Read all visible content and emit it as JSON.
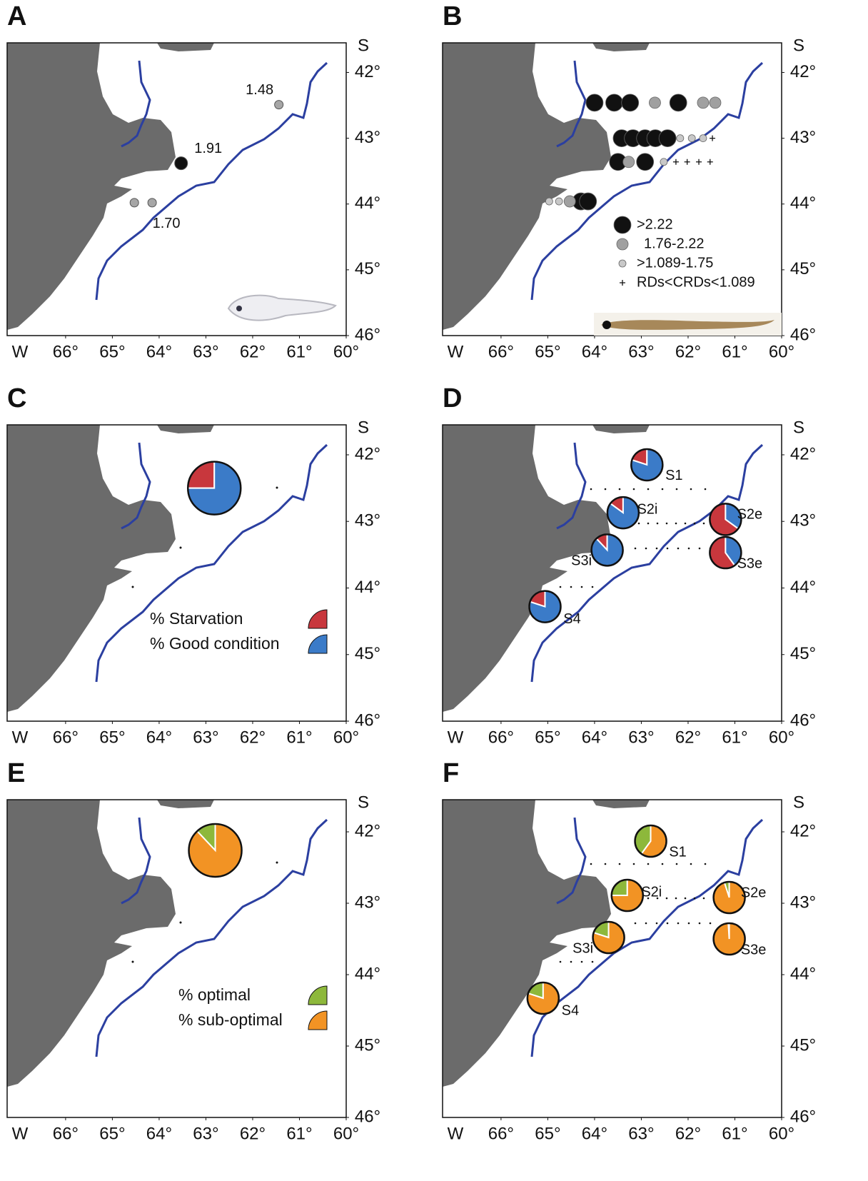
{
  "figure": {
    "axes": {
      "xlabel": "W",
      "ylabel": "S",
      "xlim": [
        67.25,
        60
      ],
      "ylim": [
        41.55,
        46
      ],
      "xticks": [
        {
          "value": 66,
          "label": "66°"
        },
        {
          "value": 65,
          "label": "65°"
        },
        {
          "value": 64,
          "label": "64°"
        },
        {
          "value": 63,
          "label": "63°"
        },
        {
          "value": 62,
          "label": "62°"
        },
        {
          "value": 61,
          "label": "61°"
        },
        {
          "value": 60,
          "label": "60°"
        }
      ],
      "yticks": [
        {
          "value": 42,
          "label": "42°"
        },
        {
          "value": 43,
          "label": "43°"
        },
        {
          "value": 44,
          "label": "44°"
        },
        {
          "value": 45,
          "label": "45°"
        },
        {
          "value": 46,
          "label": "46°"
        }
      ]
    },
    "panels": [
      {
        "letter": "A",
        "type": "points",
        "points": [
          {
            "lon": 61.44,
            "lat": 42.49,
            "color": "#a6a6a6",
            "label": "1.48"
          },
          {
            "lon": 63.53,
            "lat": 43.38,
            "color": "#111111",
            "label": "1.91"
          },
          {
            "lon": 64.15,
            "lat": 43.98,
            "color": "#a6a6a6",
            "label": "1.70"
          },
          {
            "lon": 64.53,
            "lat": 43.98,
            "color": "#a6a6a6"
          }
        ]
      },
      {
        "letter": "B",
        "type": "classes",
        "classes": [
          {
            "label": ">2.22",
            "color": "#111111",
            "marker": "circle",
            "points": [
              [
                64.0,
                42.46
              ],
              [
                63.58,
                42.46
              ],
              [
                63.24,
                42.46
              ],
              [
                62.21,
                42.46
              ],
              [
                63.42,
                43.0
              ],
              [
                63.18,
                43.0
              ],
              [
                62.92,
                43.0
              ],
              [
                62.7,
                43.0
              ],
              [
                62.44,
                43.0
              ],
              [
                63.5,
                43.36
              ],
              [
                62.92,
                43.36
              ],
              [
                64.29,
                43.96
              ],
              [
                64.14,
                43.96
              ]
            ]
          },
          {
            "label": "1.76-2.22",
            "color": "#a0a0a0",
            "marker": "circle",
            "points": [
              [
                62.71,
                42.46
              ],
              [
                61.68,
                42.46
              ],
              [
                61.42,
                42.46
              ],
              [
                63.27,
                43.36
              ],
              [
                64.53,
                43.96
              ]
            ]
          },
          {
            "label": ">1.089-1.75",
            "color": "#c8c8c8",
            "marker": "circle",
            "points": [
              [
                62.17,
                43.0
              ],
              [
                61.92,
                43.0
              ],
              [
                61.68,
                43.0
              ],
              [
                62.52,
                43.36
              ],
              [
                64.97,
                43.96
              ],
              [
                64.76,
                43.96
              ]
            ]
          },
          {
            "label": "RDs<CRDs<1.089",
            "color": "#111111",
            "marker": "plus",
            "points": [
              [
                61.48,
                43.0
              ],
              [
                62.26,
                43.36
              ],
              [
                62.02,
                43.36
              ],
              [
                61.77,
                43.36
              ],
              [
                61.53,
                43.36
              ]
            ]
          }
        ]
      },
      {
        "letter": "C",
        "type": "pies",
        "series": [
          {
            "name": "% Starvation",
            "color": "#c8373d"
          },
          {
            "name": "% Good condition",
            "color": "#3b7bc8"
          }
        ],
        "pies": [
          {
            "lon": 62.82,
            "lat": 42.5,
            "values": [
              25,
              75
            ]
          }
        ]
      },
      {
        "letter": "D",
        "type": "pies",
        "series": [
          {
            "color": "#c8373d"
          },
          {
            "color": "#3b7bc8"
          }
        ],
        "pies": [
          {
            "label": "S1",
            "lon": 62.88,
            "lat": 42.15,
            "values": [
              20,
              80
            ]
          },
          {
            "label": "S2i",
            "lon": 63.39,
            "lat": 42.87,
            "values": [
              15,
              85
            ]
          },
          {
            "label": "S2e",
            "lon": 61.2,
            "lat": 42.97,
            "values": [
              65,
              35
            ]
          },
          {
            "label": "S3i",
            "lon": 63.73,
            "lat": 43.43,
            "values": [
              12,
              88
            ]
          },
          {
            "label": "S3e",
            "lon": 61.2,
            "lat": 43.47,
            "values": [
              60,
              40
            ]
          },
          {
            "label": "S4",
            "lon": 65.06,
            "lat": 44.28,
            "values": [
              20,
              80
            ]
          }
        ]
      },
      {
        "letter": "E",
        "type": "pies",
        "series": [
          {
            "name": "% optimal",
            "color": "#8db83b"
          },
          {
            "name": "% sub-optimal",
            "color": "#f29324"
          }
        ],
        "pies": [
          {
            "lon": 62.8,
            "lat": 42.26,
            "values": [
              12,
              88
            ]
          }
        ]
      },
      {
        "letter": "F",
        "type": "pies",
        "series": [
          {
            "color": "#8db83b"
          },
          {
            "color": "#f29324"
          }
        ],
        "pies": [
          {
            "label": "S1",
            "lon": 62.8,
            "lat": 42.13,
            "values": [
              40,
              60
            ]
          },
          {
            "label": "S2i",
            "lon": 63.3,
            "lat": 42.89,
            "values": [
              25,
              75
            ]
          },
          {
            "label": "S2e",
            "lon": 61.12,
            "lat": 42.92,
            "values": [
              5,
              95
            ]
          },
          {
            "label": "S3i",
            "lon": 63.7,
            "lat": 43.48,
            "values": [
              20,
              80
            ]
          },
          {
            "label": "S3e",
            "lon": 61.12,
            "lat": 43.5,
            "values": [
              1,
              99
            ]
          },
          {
            "label": "S4",
            "lon": 65.1,
            "lat": 44.33,
            "values": [
              20,
              80
            ]
          }
        ]
      }
    ]
  }
}
